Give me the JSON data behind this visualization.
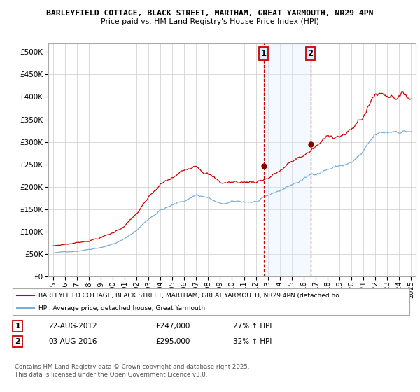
{
  "title_line1": "BARLEYFIELD COTTAGE, BLACK STREET, MARTHAM, GREAT YARMOUTH, NR29 4PN",
  "title_line2": "Price paid vs. HM Land Registry's House Price Index (HPI)",
  "legend_label1": "BARLEYFIELD COTTAGE, BLACK STREET, MARTHAM, GREAT YARMOUTH, NR29 4PN (detached ho",
  "legend_label2": "HPI: Average price, detached house, Great Yarmouth",
  "annotation1_label": "1",
  "annotation1_date": "22-AUG-2012",
  "annotation1_price": "£247,000",
  "annotation1_hpi": "27% ↑ HPI",
  "annotation2_label": "2",
  "annotation2_date": "03-AUG-2016",
  "annotation2_price": "£295,000",
  "annotation2_hpi": "32% ↑ HPI",
  "footer": "Contains HM Land Registry data © Crown copyright and database right 2025.\nThis data is licensed under the Open Government Licence v3.0.",
  "color_property": "#cc0000",
  "color_hpi": "#7aadd4",
  "color_annotation_vline": "#cc0000",
  "color_annotation_box_fill": "#ddeeff",
  "color_annotation_box_edge": "#cc0000",
  "color_shade": "#ddeeff",
  "ylim": [
    0,
    520000
  ],
  "yticks": [
    0,
    50000,
    100000,
    150000,
    200000,
    250000,
    300000,
    350000,
    400000,
    450000,
    500000
  ],
  "purchase1_year": 2012.64,
  "purchase2_year": 2016.58,
  "purchase1_price": 247000,
  "purchase2_price": 295000
}
